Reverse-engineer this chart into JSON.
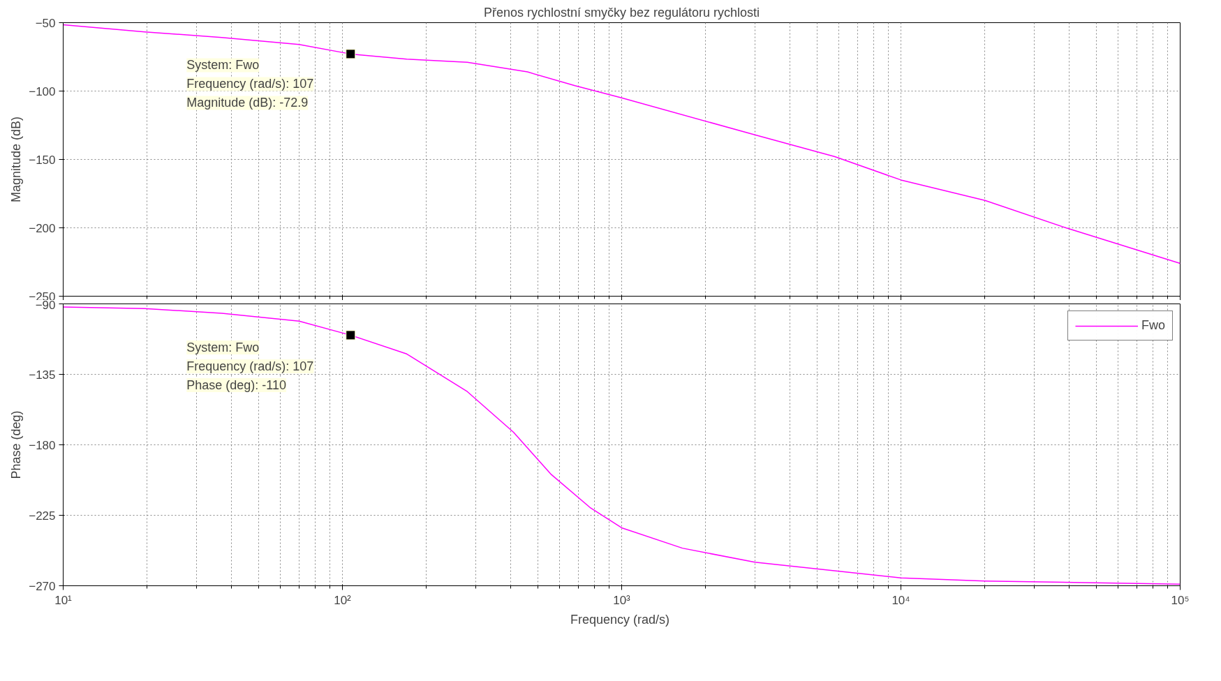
{
  "chart_data": [
    {
      "type": "line",
      "title": "Přenos rychlostní smyčky bez regulátoru rychlosti",
      "ylabel": "Magnitude (dB)",
      "log": "x",
      "grid": true,
      "tick_labels": "y",
      "x": [
        10,
        19.6,
        37,
        70,
        107,
        170,
        280,
        460,
        680,
        1000,
        3000,
        5800,
        10000,
        20000,
        39000,
        100000
      ],
      "series": [
        {
          "color": "#ff00ff",
          "values": [
            -51.5,
            -56.7,
            -60.8,
            -66,
            -72.9,
            -76.7,
            -79,
            -86,
            -96,
            -105,
            -132,
            -148,
            -165,
            -180,
            -200,
            -226
          ]
        }
      ],
      "xlim": [
        10,
        100000
      ],
      "xticks": [
        10,
        100,
        1000,
        10000,
        100000
      ],
      "ylim": [
        -250,
        -50
      ],
      "yticks": [
        -250,
        -200,
        -150,
        -100,
        -50
      ],
      "annotations": [
        {
          "text": "System: Fwo\nFrequency (rad/s): 107\nMagnitude (dB): -72.9",
          "x": 107,
          "y": -72.9
        }
      ]
    },
    {
      "type": "line",
      "ylabel": "Phase (deg)",
      "xlabel": "Frequency  (rad/s)",
      "log": "x",
      "grid": true,
      "legend": "top right",
      "x": [
        10,
        19.6,
        37,
        70,
        107,
        170,
        280,
        410,
        560,
        770,
        1000,
        1650,
        3000,
        10000,
        20000,
        100000
      ],
      "series": [
        {
          "name": "Fwo",
          "color": "#ff00ff",
          "values": [
            -92,
            -93,
            -96,
            -101,
            -110,
            -122,
            -146,
            -172,
            -199,
            -220,
            -233,
            -246,
            -255,
            -265,
            -267,
            -269
          ]
        }
      ],
      "xlim": [
        10,
        100000
      ],
      "xticks": [
        {
          "value": 10,
          "label": "10¹"
        },
        {
          "value": 100,
          "label": "10²"
        },
        {
          "value": 1000,
          "label": "10³"
        },
        {
          "value": 10000,
          "label": "10⁴"
        },
        {
          "value": 100000,
          "label": "10⁵"
        }
      ],
      "ylim": [
        -270,
        -90
      ],
      "yticks": [
        -270,
        -225,
        -180,
        -135,
        -90
      ],
      "annotations": [
        {
          "text": "System: Fwo\nFrequency (rad/s): 107\nPhase (deg): -110",
          "x": 107,
          "y": -110
        }
      ]
    }
  ]
}
